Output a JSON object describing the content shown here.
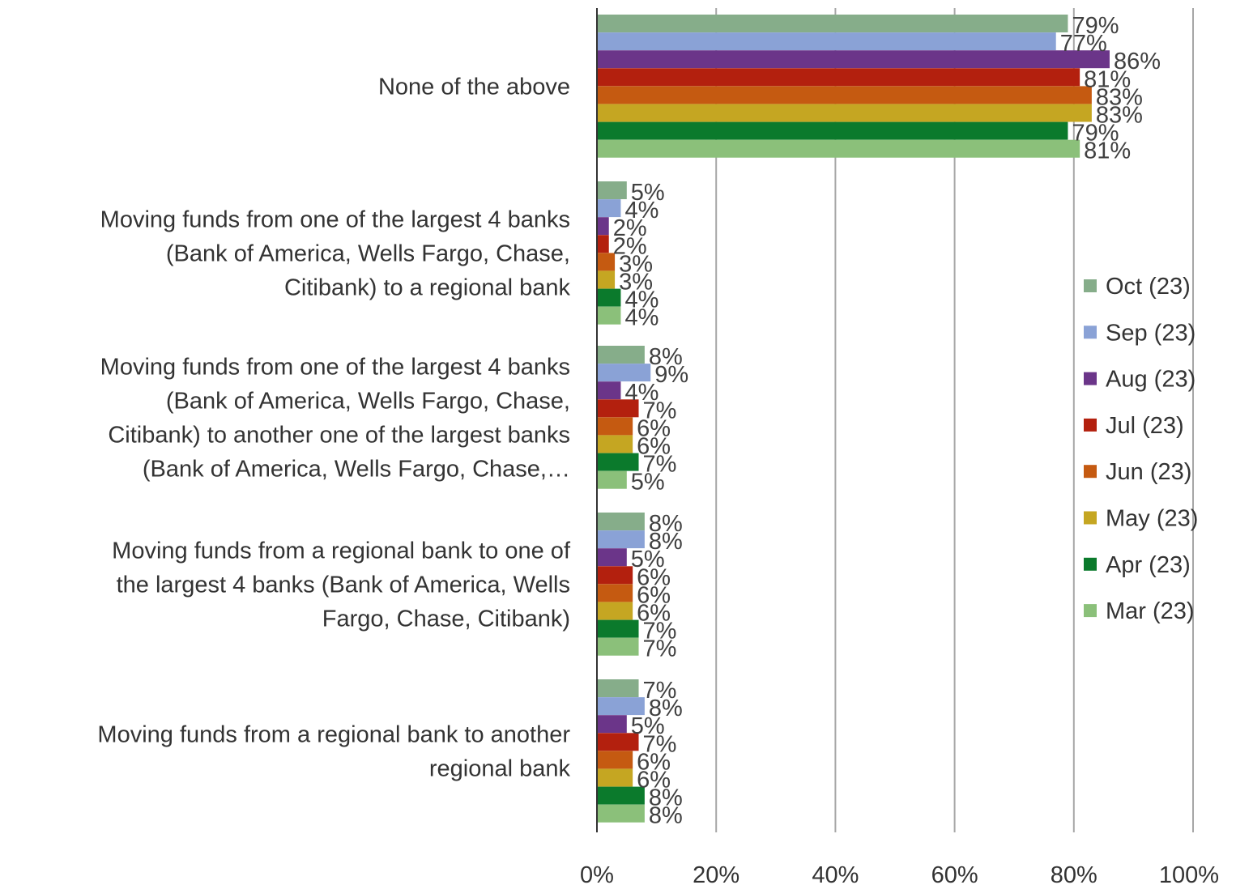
{
  "chart_data": {
    "type": "bar",
    "orientation": "horizontal",
    "categories": [
      [
        "None of the above"
      ],
      [
        "Moving funds from one of the largest 4 banks",
        "(Bank of America, Wells Fargo, Chase,",
        "Citibank) to a regional bank"
      ],
      [
        "Moving funds from one of the largest 4 banks",
        "(Bank of America, Wells Fargo, Chase,",
        "Citibank) to another one of the largest banks",
        "(Bank of America, Wells Fargo, Chase,…"
      ],
      [
        "Moving funds from a regional bank to one of",
        "the largest 4 banks (Bank of America, Wells",
        "Fargo, Chase, Citibank)"
      ],
      [
        "Moving funds from a regional bank to another",
        "regional bank"
      ]
    ],
    "series": [
      {
        "name": "Oct (23)",
        "color": "#86ad8a",
        "values": [
          79,
          5,
          8,
          8,
          7
        ]
      },
      {
        "name": "Sep (23)",
        "color": "#8aa2d6",
        "values": [
          77,
          4,
          9,
          8,
          8
        ]
      },
      {
        "name": "Aug (23)",
        "color": "#6b3589",
        "values": [
          86,
          2,
          4,
          5,
          5
        ]
      },
      {
        "name": "Jul (23)",
        "color": "#b3200e",
        "values": [
          81,
          2,
          7,
          6,
          7
        ]
      },
      {
        "name": "Jun (23)",
        "color": "#c55a11",
        "values": [
          83,
          3,
          6,
          6,
          6
        ]
      },
      {
        "name": "May (23)",
        "color": "#c5a622",
        "values": [
          83,
          3,
          6,
          6,
          6
        ]
      },
      {
        "name": "Apr (23)",
        "color": "#0b7a2c",
        "values": [
          79,
          4,
          7,
          7,
          8
        ]
      },
      {
        "name": "Mar (23)",
        "color": "#8bc07a",
        "values": [
          81,
          4,
          5,
          7,
          8
        ]
      }
    ],
    "value_suffix": "%",
    "xlim": [
      0,
      100
    ],
    "xticks": [
      "0%",
      "20%",
      "40%",
      "60%",
      "80%",
      "100%"
    ],
    "grid": "vertical",
    "legend": "right"
  }
}
